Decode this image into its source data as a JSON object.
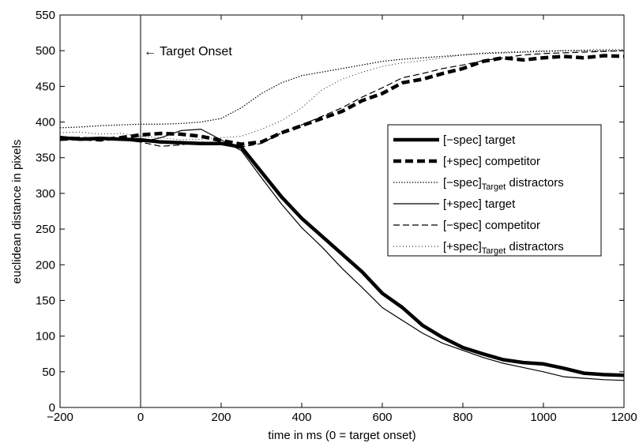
{
  "chart_data": {
    "type": "line",
    "title": "",
    "xlabel": "time in ms (0 = target onset)",
    "ylabel": "euclidean distance in pixels",
    "xlim": [
      -200,
      1200
    ],
    "ylim": [
      0,
      550
    ],
    "xticks": [
      -200,
      0,
      200,
      400,
      600,
      800,
      1000,
      1200
    ],
    "yticks": [
      0,
      50,
      100,
      150,
      200,
      250,
      300,
      350,
      400,
      450,
      500,
      550
    ],
    "grid": false,
    "legend_position": "right",
    "annotation": {
      "text": "← Target Onset",
      "x": 0
    },
    "series": [
      {
        "name": "[−spec] target",
        "legend_base": "[−spec] target",
        "legend_sub": "",
        "legend_after": "",
        "line_style": "thick-solid",
        "x": [
          -200,
          -150,
          -100,
          -50,
          0,
          50,
          100,
          150,
          200,
          250,
          300,
          350,
          400,
          450,
          500,
          550,
          600,
          650,
          700,
          750,
          800,
          850,
          900,
          950,
          1000,
          1050,
          1100,
          1150,
          1200
        ],
        "values": [
          378,
          376,
          377,
          376,
          375,
          372,
          371,
          370,
          370,
          365,
          330,
          295,
          265,
          240,
          215,
          190,
          160,
          140,
          115,
          98,
          84,
          75,
          67,
          63,
          61,
          55,
          48,
          46,
          45
        ]
      },
      {
        "name": "[+spec] competitor",
        "legend_base": "[+spec] competitor",
        "legend_sub": "",
        "legend_after": "",
        "line_style": "thick-dashed",
        "x": [
          -200,
          -150,
          -100,
          -50,
          0,
          50,
          100,
          150,
          200,
          250,
          300,
          350,
          400,
          450,
          500,
          550,
          600,
          650,
          700,
          750,
          800,
          850,
          900,
          950,
          1000,
          1050,
          1100,
          1150,
          1200
        ],
        "values": [
          376,
          377,
          375,
          378,
          382,
          384,
          383,
          380,
          374,
          369,
          372,
          385,
          395,
          405,
          415,
          430,
          440,
          455,
          460,
          468,
          475,
          485,
          490,
          487,
          490,
          492,
          490,
          493,
          492
        ]
      },
      {
        "name": "[−spec]Target distractors",
        "legend_base": "[−spec]",
        "legend_sub": "Target",
        "legend_after": " distractors",
        "line_style": "dotted-heavy",
        "x": [
          -200,
          -150,
          -100,
          -50,
          0,
          50,
          100,
          150,
          200,
          250,
          300,
          350,
          400,
          450,
          500,
          550,
          600,
          650,
          700,
          750,
          800,
          850,
          900,
          950,
          1000,
          1050,
          1100,
          1150,
          1200
        ],
        "values": [
          392,
          393,
          395,
          396,
          397,
          397,
          398,
          400,
          405,
          420,
          440,
          455,
          465,
          470,
          475,
          480,
          485,
          488,
          490,
          492,
          494,
          496,
          497,
          498,
          499,
          500,
          500,
          500,
          500
        ]
      },
      {
        "name": "[+spec] target",
        "legend_base": "[+spec] target",
        "legend_sub": "",
        "legend_after": "",
        "line_style": "thin-solid",
        "x": [
          -200,
          -150,
          -100,
          -50,
          0,
          50,
          100,
          150,
          200,
          250,
          300,
          350,
          400,
          450,
          500,
          550,
          600,
          650,
          700,
          750,
          800,
          850,
          900,
          950,
          1000,
          1050,
          1100,
          1150,
          1200
        ],
        "values": [
          377,
          375,
          376,
          375,
          372,
          378,
          388,
          390,
          375,
          360,
          322,
          285,
          252,
          225,
          195,
          168,
          140,
          122,
          104,
          90,
          80,
          70,
          62,
          56,
          50,
          43,
          41,
          39,
          38
        ]
      },
      {
        "name": "[−spec] competitor",
        "legend_base": "[−spec] competitor",
        "legend_sub": "",
        "legend_after": "",
        "line_style": "thin-dashed",
        "x": [
          -200,
          -150,
          -100,
          -50,
          0,
          50,
          100,
          150,
          200,
          250,
          300,
          350,
          400,
          450,
          500,
          550,
          600,
          650,
          700,
          750,
          800,
          850,
          900,
          950,
          1000,
          1050,
          1100,
          1150,
          1200
        ],
        "values": [
          380,
          378,
          377,
          376,
          372,
          366,
          368,
          372,
          370,
          365,
          370,
          385,
          396,
          408,
          420,
          435,
          448,
          462,
          468,
          475,
          480,
          486,
          490,
          494,
          496,
          497,
          498,
          499,
          500
        ]
      },
      {
        "name": "[+spec]Target distractors",
        "legend_base": "[+spec]",
        "legend_sub": "Target",
        "legend_after": " distractors",
        "line_style": "dotted-light",
        "x": [
          -200,
          -150,
          -100,
          -50,
          0,
          50,
          100,
          150,
          200,
          250,
          300,
          350,
          400,
          450,
          500,
          550,
          600,
          650,
          700,
          750,
          800,
          850,
          900,
          950,
          1000,
          1050,
          1100,
          1150,
          1200
        ],
        "values": [
          385,
          386,
          383,
          384,
          380,
          378,
          375,
          376,
          378,
          380,
          390,
          402,
          420,
          445,
          460,
          470,
          478,
          483,
          486,
          490,
          494,
          497,
          498,
          499,
          500,
          500,
          501,
          502,
          502
        ]
      }
    ]
  }
}
